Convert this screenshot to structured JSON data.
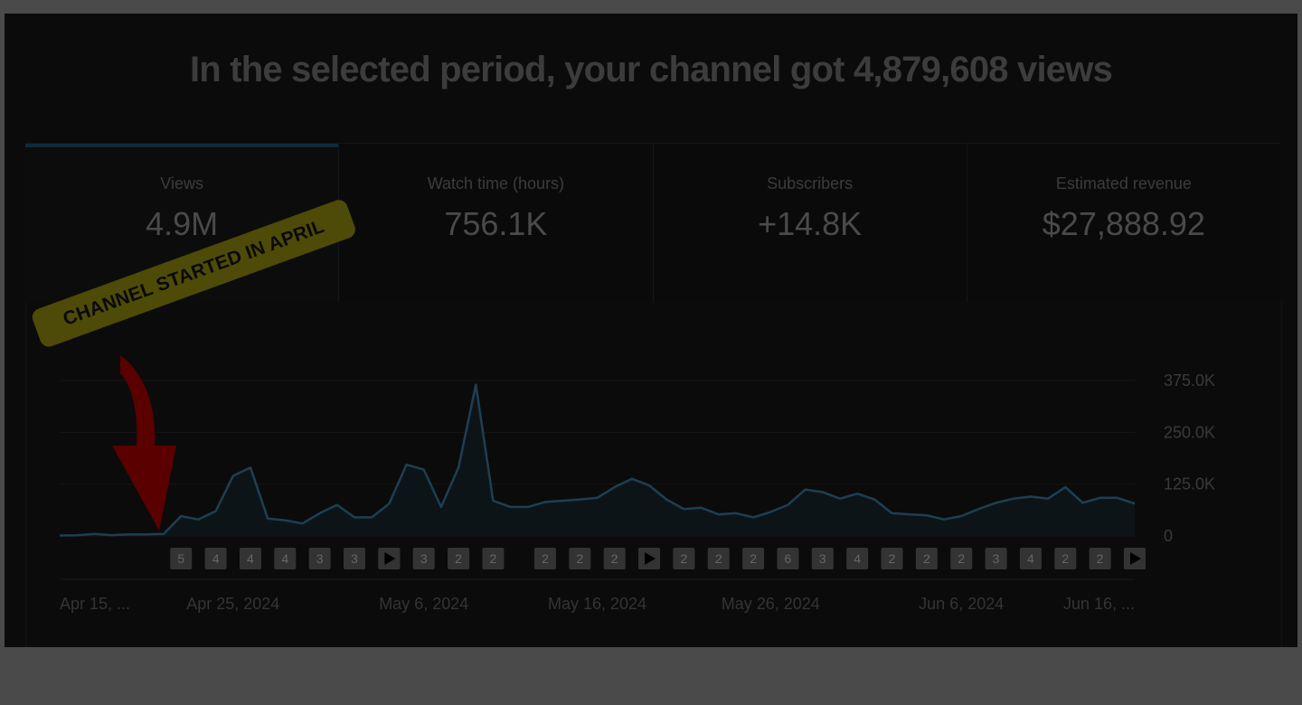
{
  "headline": "In the selected period, your channel got 4,879,608 views",
  "metrics": [
    {
      "label": "Views",
      "value": "4.9M",
      "selected": true
    },
    {
      "label": "Watch time (hours)",
      "value": "756.1K"
    },
    {
      "label": "Subscribers",
      "value": "+14.8K"
    },
    {
      "label": "Estimated revenue",
      "value": "$27,888.92"
    }
  ],
  "annotation": {
    "text": "CHANNEL STARTED IN APRIL"
  },
  "colors": {
    "accent": "#0e2a3a",
    "line": "#1e3f52",
    "arrow": "#5a0000",
    "annotation_bg": "#4e4a08"
  },
  "chart_data": {
    "type": "line",
    "y_ticks": [
      "375.0K",
      "250.0K",
      "125.0K",
      "0"
    ],
    "y_tick_values": [
      375000,
      250000,
      125000,
      0
    ],
    "ylim": [
      0,
      375000
    ],
    "x_tick_labels": [
      "Apr 15, ...",
      "Apr 25, 2024",
      "May 6, 2024",
      "May 16, 2024",
      "May 26, 2024",
      "Jun 6, 2024",
      "Jun 16, ..."
    ],
    "x_tick_days": [
      0,
      10,
      21,
      31,
      41,
      52,
      62
    ],
    "x_range_days": [
      0,
      62
    ],
    "series": [
      {
        "days": [
          0,
          1,
          2,
          3,
          4,
          5,
          6,
          7,
          8,
          9,
          10,
          11,
          12,
          13,
          14,
          15,
          16,
          17,
          18,
          19,
          20,
          21,
          22,
          23,
          24,
          25,
          26,
          27,
          28,
          29,
          30,
          31,
          32,
          33,
          34,
          35,
          36,
          37,
          38,
          39,
          40,
          41,
          42,
          43,
          44,
          45,
          46,
          47,
          48,
          49,
          50,
          51,
          52,
          53,
          54,
          55,
          56,
          57,
          58,
          59,
          60,
          61,
          62
        ],
        "values": [
          1000,
          1500,
          5000,
          2000,
          4000,
          4000,
          5000,
          48000,
          40000,
          60000,
          145000,
          165000,
          42000,
          38000,
          30000,
          55000,
          75000,
          45000,
          45000,
          78000,
          172000,
          160000,
          70000,
          165000,
          365000,
          85000,
          70000,
          70000,
          82000,
          85000,
          88000,
          92000,
          118000,
          138000,
          122000,
          88000,
          65000,
          68000,
          52000,
          55000,
          45000,
          58000,
          75000,
          112000,
          106000,
          90000,
          102000,
          88000,
          55000,
          52000,
          50000,
          40000,
          48000,
          65000,
          80000,
          90000,
          95000,
          90000,
          118000,
          80000,
          92000,
          92000,
          78000
        ]
      }
    ],
    "markers": [
      {
        "day": 7,
        "label": "5"
      },
      {
        "day": 9,
        "label": "4"
      },
      {
        "day": 11,
        "label": "4"
      },
      {
        "day": 13,
        "label": "4"
      },
      {
        "day": 15,
        "label": "3"
      },
      {
        "day": 17,
        "label": "3"
      },
      {
        "day": 19,
        "label": "play"
      },
      {
        "day": 21,
        "label": "3"
      },
      {
        "day": 23,
        "label": "2"
      },
      {
        "day": 25,
        "label": "2"
      },
      {
        "day": 28,
        "label": "2"
      },
      {
        "day": 30,
        "label": "2"
      },
      {
        "day": 32,
        "label": "2"
      },
      {
        "day": 34,
        "label": "play"
      },
      {
        "day": 36,
        "label": "2"
      },
      {
        "day": 38,
        "label": "2"
      },
      {
        "day": 40,
        "label": "2"
      },
      {
        "day": 42,
        "label": "6"
      },
      {
        "day": 44,
        "label": "3"
      },
      {
        "day": 46,
        "label": "4"
      },
      {
        "day": 48,
        "label": "2"
      },
      {
        "day": 50,
        "label": "2"
      },
      {
        "day": 52,
        "label": "2"
      },
      {
        "day": 54,
        "label": "3"
      },
      {
        "day": 56,
        "label": "4"
      },
      {
        "day": 58,
        "label": "2"
      },
      {
        "day": 60,
        "label": "2"
      },
      {
        "day": 62,
        "label": "play"
      }
    ]
  }
}
